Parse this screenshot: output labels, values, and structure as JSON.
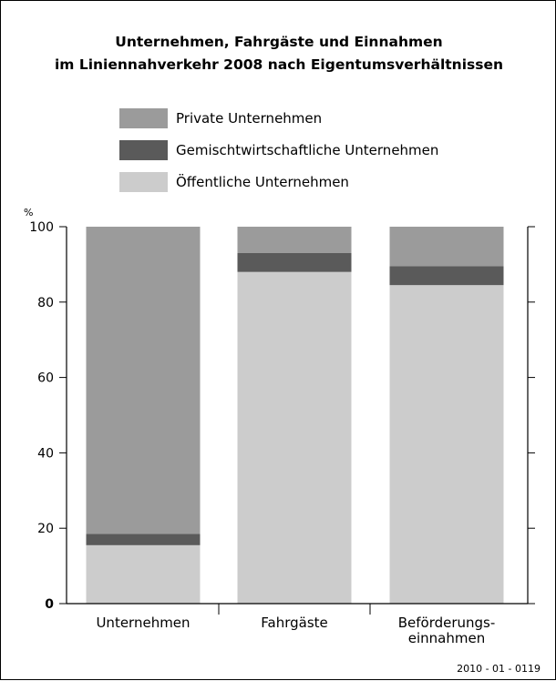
{
  "chart_data": {
    "type": "bar",
    "stacked": true,
    "title_line1": "Unternehmen, Fahrgäste und Einnahmen",
    "title_line2": "im Liniennahverkehr 2008 nach Eigentumsverhältnissen",
    "y_unit": "%",
    "ylim": [
      0,
      100
    ],
    "yticks": [
      0,
      20,
      40,
      60,
      80,
      100
    ],
    "grid": false,
    "legend_position": "top",
    "categories": [
      "Unternehmen",
      "Fahrgäste",
      "Beförderungs-\neinnahmen"
    ],
    "series": [
      {
        "name": "Öffentliche Unternehmen",
        "color": "#cccccc",
        "values": [
          15.5,
          88.0,
          84.5
        ]
      },
      {
        "name": "Gemischtwirtschaftliche Unternehmen",
        "color": "#5a5a5a",
        "values": [
          3.0,
          5.0,
          5.0
        ]
      },
      {
        "name": "Private Unternehmen",
        "color": "#9b9b9b",
        "values": [
          81.5,
          7.0,
          10.5
        ]
      }
    ],
    "legend_order": [
      "Private Unternehmen",
      "Gemischtwirtschaftliche Unternehmen",
      "Öffentliche Unternehmen"
    ],
    "footnote": "2010 - 01 - 0119"
  }
}
